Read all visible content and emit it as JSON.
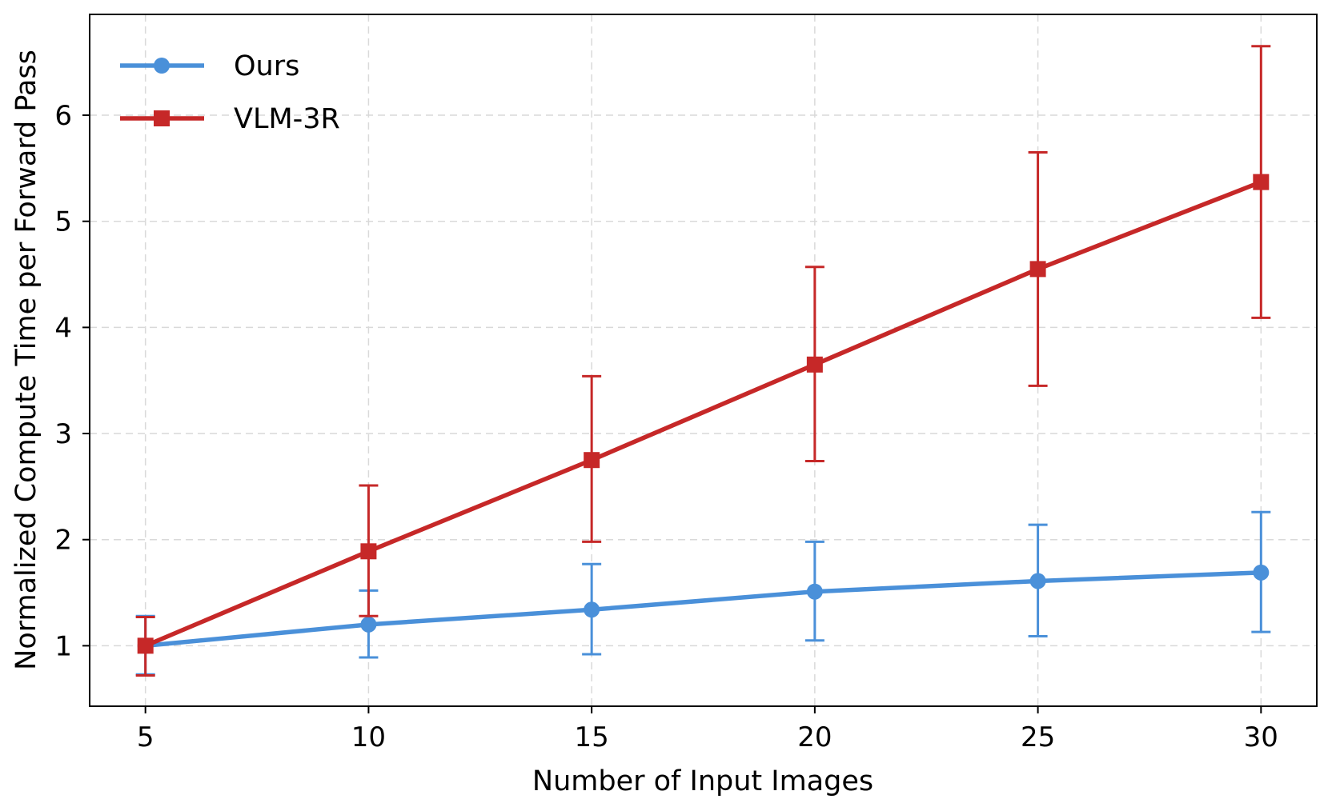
{
  "chart_data": {
    "type": "line",
    "title": "",
    "xlabel": "Number of Input Images",
    "ylabel": "Normalized Compute Time per Forward Pass",
    "x": [
      5,
      10,
      15,
      20,
      25,
      30
    ],
    "xticks": [
      5,
      10,
      15,
      20,
      25,
      30
    ],
    "yticks": [
      1,
      2,
      3,
      4,
      5,
      6
    ],
    "xlim": [
      3.75,
      31.25
    ],
    "ylim": [
      0.43,
      6.95
    ],
    "grid": true,
    "legend_position": "top-left",
    "series": [
      {
        "name": "Ours",
        "color": "#4a90d9",
        "marker": "circle",
        "values": [
          1.0,
          1.2,
          1.34,
          1.51,
          1.61,
          1.69
        ],
        "error_low": [
          0.73,
          0.89,
          0.92,
          1.05,
          1.09,
          1.13
        ],
        "error_high": [
          1.28,
          1.52,
          1.77,
          1.98,
          2.14,
          2.26
        ]
      },
      {
        "name": "VLM-3R",
        "color": "#c62828",
        "marker": "square",
        "values": [
          1.0,
          1.89,
          2.75,
          3.65,
          4.55,
          5.37
        ],
        "error_low": [
          0.72,
          1.28,
          1.98,
          2.74,
          3.45,
          4.09
        ],
        "error_high": [
          1.27,
          2.51,
          3.54,
          4.57,
          5.65,
          6.65
        ]
      }
    ]
  }
}
